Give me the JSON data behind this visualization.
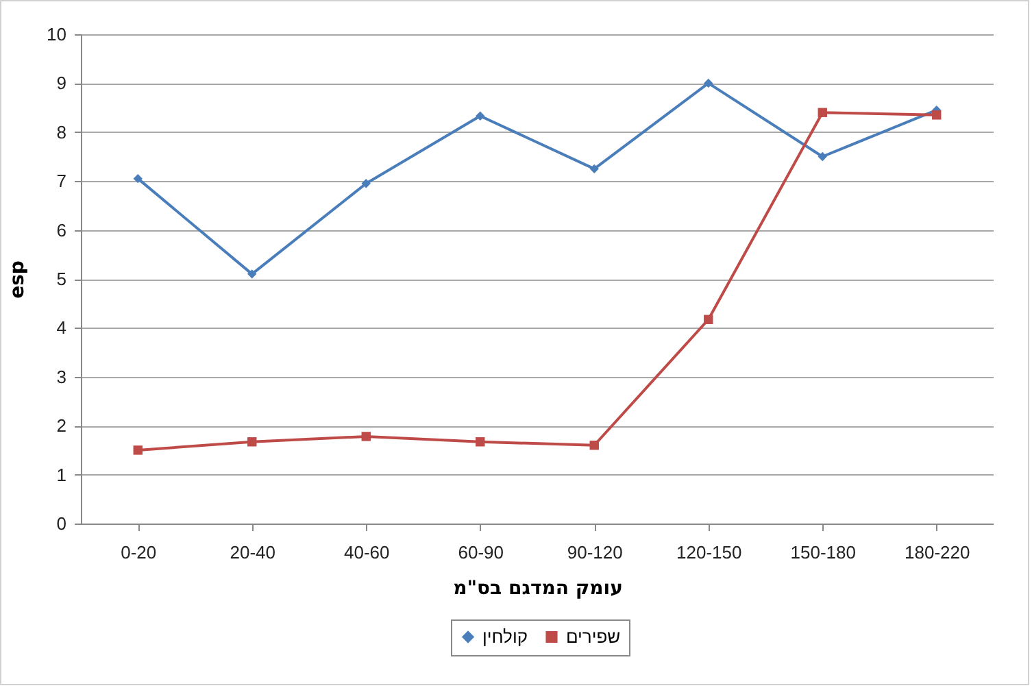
{
  "chart_data": {
    "type": "line",
    "xlabel": "עומק המדגם בס\"מ",
    "ylabel": "esp",
    "categories": [
      "0-20",
      "20-40",
      "40-60",
      "60-90",
      "90-120",
      "120-150",
      "150-180",
      "180-220"
    ],
    "series": [
      {
        "name": "קולחין",
        "color": "#4a7ebb",
        "marker": "diamond",
        "values": [
          7.05,
          5.1,
          6.95,
          8.33,
          7.25,
          9.0,
          7.5,
          8.45
        ]
      },
      {
        "name": "שפירים",
        "color": "#be4b48",
        "marker": "square",
        "values": [
          1.5,
          1.67,
          1.78,
          1.67,
          1.6,
          4.17,
          8.4,
          8.35
        ]
      }
    ],
    "ylim": [
      0,
      10
    ],
    "yticks": [
      0,
      1,
      2,
      3,
      4,
      5,
      6,
      7,
      8,
      9,
      10
    ],
    "grid": "y",
    "legend": "bottom"
  }
}
